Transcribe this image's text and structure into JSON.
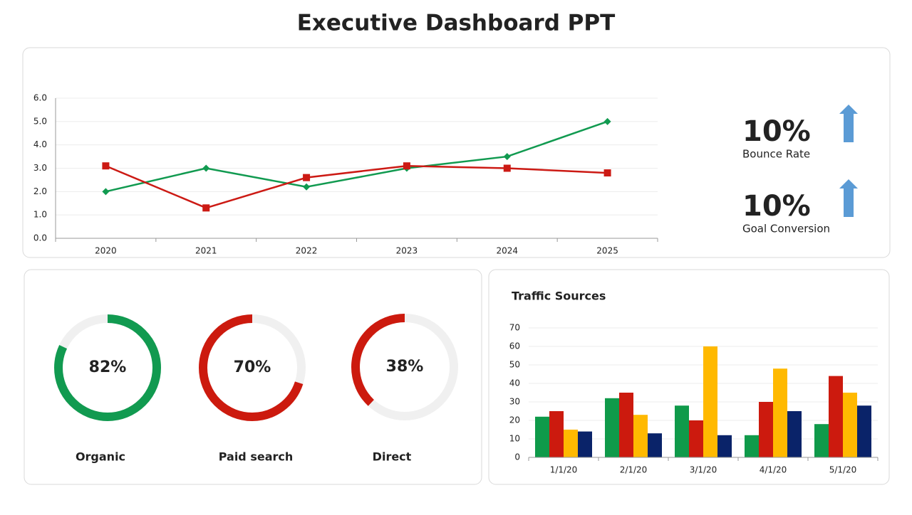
{
  "title": "Executive Dashboard PPT",
  "chart_data": [
    {
      "type": "line",
      "categories": [
        "2020",
        "2021",
        "2022",
        "2023",
        "2024",
        "2025"
      ],
      "series": [
        {
          "color": "#119a50",
          "marker": "diamond",
          "values": [
            2.0,
            3.0,
            2.2,
            3.0,
            3.5,
            5.0
          ]
        },
        {
          "color": "#cc1a14",
          "marker": "square",
          "values": [
            3.1,
            1.3,
            2.6,
            3.1,
            3.0,
            2.8
          ]
        }
      ],
      "ylim": [
        0,
        6
      ],
      "yticks": [
        {
          "value": 0,
          "label": "0.0"
        },
        {
          "value": 1,
          "label": "1.0"
        },
        {
          "value": 2,
          "label": "2.0"
        },
        {
          "value": 3,
          "label": "3.0"
        },
        {
          "value": 4,
          "label": "4.0"
        },
        {
          "value": 5,
          "label": "5.0"
        },
        {
          "value": 6,
          "label": "6.0"
        }
      ],
      "grid": true
    },
    {
      "type": "donut",
      "categories": [
        "Organic",
        "Paid search",
        "Direct"
      ],
      "values": [
        82,
        70,
        38
      ],
      "value_labels": [
        "82%",
        "70%",
        "38%"
      ],
      "colors": [
        "#119a50",
        "#cc1a0e",
        "#cc1a0e"
      ],
      "directions": [
        "clockwise",
        "counterclockwise",
        "counterclockwise"
      ],
      "track_color": "#f0f0f0"
    },
    {
      "type": "bar",
      "title": "Traffic Sources",
      "categories": [
        "1/1/20",
        "2/1/20",
        "3/1/20",
        "4/1/20",
        "5/1/20"
      ],
      "series": [
        {
          "color": "#0f9a4a",
          "values": [
            22,
            32,
            28,
            12,
            18
          ]
        },
        {
          "color": "#cc1a0e",
          "values": [
            25,
            35,
            20,
            30,
            44
          ]
        },
        {
          "color": "#ffb900",
          "values": [
            15,
            23,
            60,
            48,
            35
          ]
        },
        {
          "color": "#0a2369",
          "values": [
            14,
            13,
            12,
            25,
            28
          ]
        }
      ],
      "ylim": [
        0,
        70
      ],
      "yticks": [
        0,
        10,
        20,
        30,
        40,
        50,
        60,
        70
      ],
      "grid": true
    }
  ],
  "kpis": [
    {
      "value": "10%",
      "label": "Bounce Rate"
    },
    {
      "value": "10%",
      "label": "Goal Conversion"
    }
  ]
}
